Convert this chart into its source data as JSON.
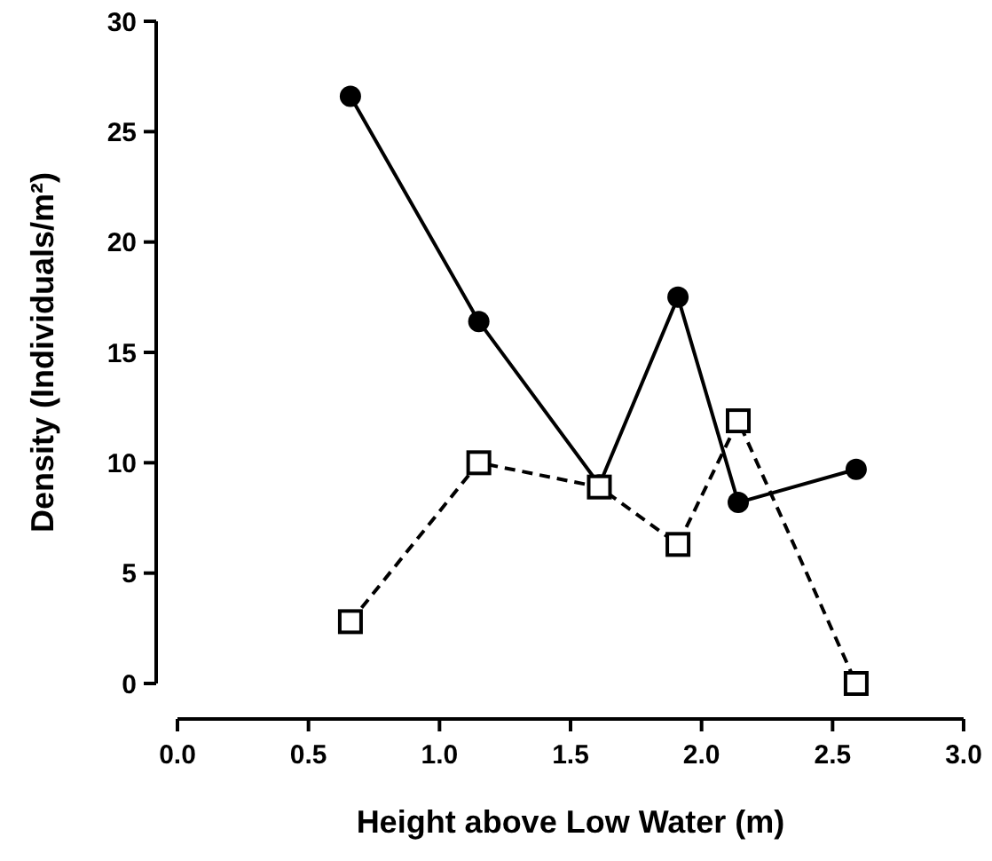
{
  "chart_data": {
    "type": "line",
    "xlabel": "Height above Low Water (m)",
    "ylabel": "Density (Individuals/m²)",
    "x": [
      0.66,
      1.15,
      1.61,
      1.91,
      2.14,
      2.59
    ],
    "series": [
      {
        "color": "#000000",
        "marker": "circle",
        "line_style": "solid",
        "values": [
          26.6,
          16.4,
          9.0,
          17.5,
          8.2,
          9.7
        ]
      },
      {
        "color": "#000000",
        "marker": "square",
        "line_style": "dashed",
        "values": [
          2.8,
          10.0,
          8.9,
          6.3,
          11.9,
          0.0
        ]
      }
    ],
    "xlim": [
      0,
      3
    ],
    "xticks": [
      {
        "value": 0,
        "label": "0.0"
      },
      0.5,
      {
        "value": 1,
        "label": "1.0"
      },
      1.5,
      {
        "value": 2,
        "label": "2.0"
      },
      2.5,
      {
        "value": 3,
        "label": "3.0"
      }
    ],
    "ylim": [
      0,
      30
    ],
    "yticks": [
      0,
      5,
      10,
      15,
      20,
      25,
      30
    ],
    "grid": false
  }
}
